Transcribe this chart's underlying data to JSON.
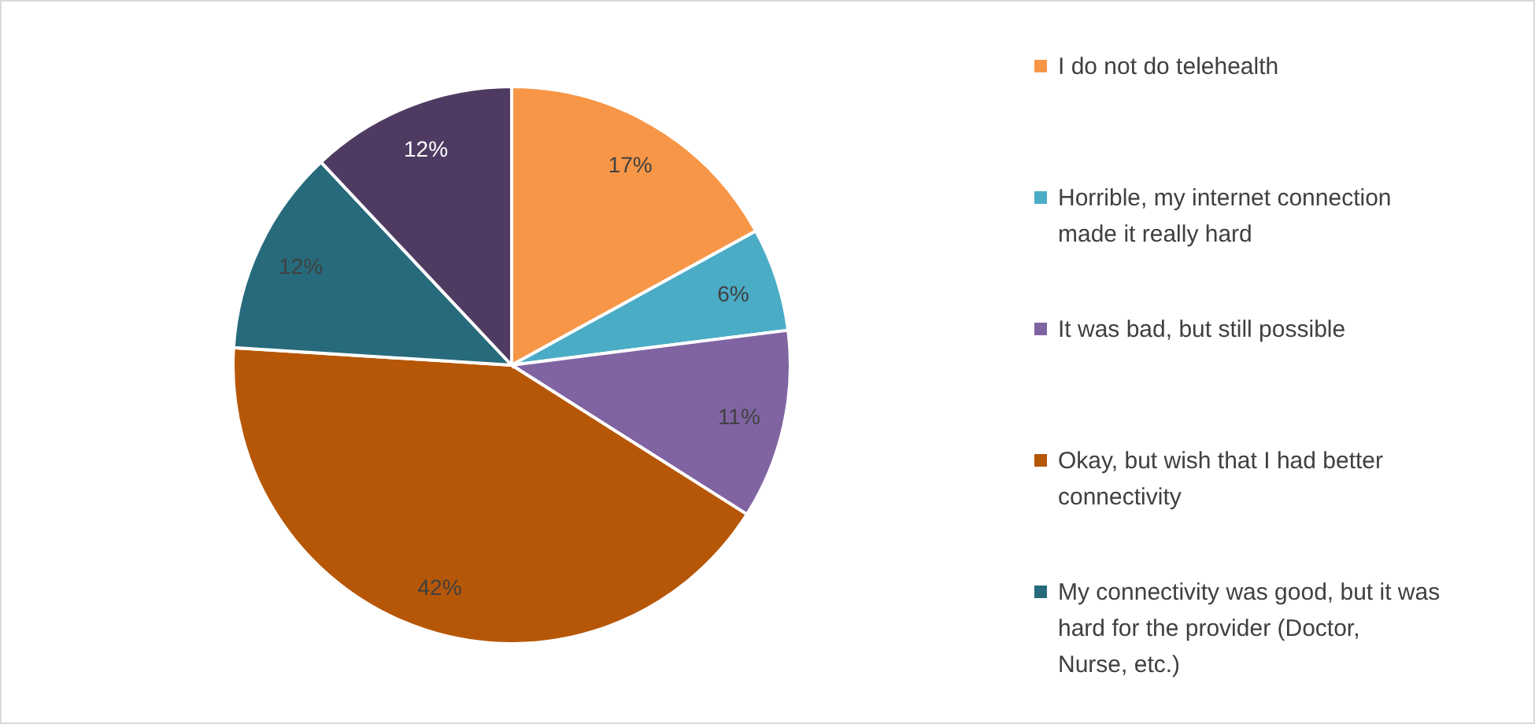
{
  "chart_data": {
    "type": "pie",
    "categories": [
      "I do not do telehealth",
      "Horrible, my internet connection made it really hard",
      "It was bad, but still possible",
      "Okay, but wish that I had better connectivity",
      "My connectivity was good, but it was hard for the provider (Doctor, Nurse, etc.)",
      null
    ],
    "values": [
      17,
      6,
      11,
      42,
      12,
      12
    ],
    "colors": [
      "#f79646",
      "#4bacc6",
      "#8064a2",
      "#b65708",
      "#276a7c",
      "#4f3b62"
    ],
    "value_labels": [
      "17%",
      "6%",
      "11%",
      "42%",
      "12%",
      "12%"
    ],
    "legend": "right"
  }
}
